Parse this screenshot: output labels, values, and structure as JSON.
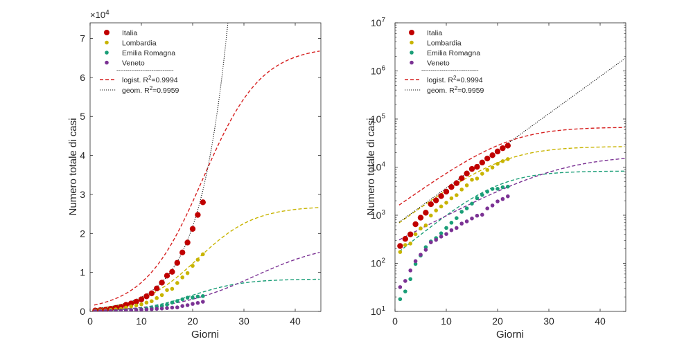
{
  "chart_data": [
    {
      "type": "scatter",
      "scale": "linear",
      "xlabel": "Giorni",
      "ylabel": "Numero totale di casi",
      "xlim": [
        0,
        45
      ],
      "ylim": [
        0,
        74000
      ],
      "exponent_label": "×10",
      "exponent_value": "4",
      "x_ticks": [
        {
          "v": 0,
          "label": "0"
        },
        {
          "v": 10,
          "label": "10"
        },
        {
          "v": 20,
          "label": "20"
        },
        {
          "v": 30,
          "label": "30"
        },
        {
          "v": 40,
          "label": "40"
        }
      ],
      "y_ticks": [
        {
          "v": 0,
          "label": "0"
        },
        {
          "v": 10000,
          "label": "1"
        },
        {
          "v": 20000,
          "label": "2"
        },
        {
          "v": 30000,
          "label": "3"
        },
        {
          "v": 40000,
          "label": "4"
        },
        {
          "v": 50000,
          "label": "5"
        },
        {
          "v": 60000,
          "label": "6"
        },
        {
          "v": 70000,
          "label": "7"
        }
      ],
      "legend": {
        "position": "top-left",
        "entries": [
          "Italia",
          "Lombardia",
          "Emilia Romagna",
          "Veneto"
        ],
        "separator": "-------------------------------",
        "fit_entries": [
          {
            "label": "logist.",
            "r2_prefix": "R",
            "r2_sup": "2",
            "r2_value": "=0.9994"
          },
          {
            "label": "geom.",
            "r2_prefix": "R",
            "r2_sup": "2",
            "r2_value": "=0.9959"
          }
        ]
      },
      "series": [
        {
          "name": "Italia",
          "color": "#c00000",
          "x": [
            1,
            2,
            3,
            4,
            5,
            6,
            7,
            8,
            9,
            10,
            11,
            12,
            13,
            14,
            15,
            16,
            17,
            18,
            19,
            20,
            21,
            22
          ],
          "values": [
            229,
            322,
            400,
            650,
            888,
            1128,
            1694,
            2036,
            2502,
            3089,
            3858,
            4636,
            5883,
            7375,
            9172,
            10149,
            12462,
            15113,
            17660,
            21157,
            24747,
            27980
          ]
        },
        {
          "name": "Lombardia",
          "color": "#c8b400",
          "x": [
            1,
            2,
            3,
            4,
            5,
            6,
            7,
            8,
            9,
            10,
            11,
            12,
            13,
            14,
            15,
            16,
            17,
            18,
            19,
            20,
            21,
            22
          ],
          "values": [
            172,
            240,
            258,
            403,
            531,
            615,
            984,
            1254,
            1520,
            1820,
            2251,
            2612,
            3420,
            4189,
            5469,
            5791,
            7280,
            8725,
            9820,
            11685,
            13272,
            14649
          ]
        },
        {
          "name": "Emilia Romagna",
          "color": "#1a9e77",
          "x": [
            1,
            2,
            3,
            4,
            5,
            6,
            7,
            8,
            9,
            10,
            11,
            12,
            13,
            14,
            15,
            16,
            17,
            18,
            19,
            20,
            21,
            22
          ],
          "values": [
            18,
            26,
            47,
            97,
            145,
            217,
            285,
            335,
            420,
            544,
            698,
            870,
            1180,
            1386,
            1739,
            2263,
            2644,
            3093,
            3522,
            3542,
            3819,
            3931
          ]
        },
        {
          "name": "Veneto",
          "color": "#7b3294",
          "x": [
            1,
            2,
            3,
            4,
            5,
            6,
            7,
            8,
            9,
            10,
            11,
            12,
            13,
            14,
            15,
            16,
            17,
            18,
            19,
            20,
            21,
            22
          ],
          "values": [
            32,
            43,
            71,
            111,
            151,
            191,
            273,
            307,
            360,
            407,
            488,
            543,
            670,
            744,
            856,
            977,
            1023,
            1384,
            1595,
            1937,
            2172,
            2473
          ]
        }
      ],
      "fits": [
        {
          "type": "logistic",
          "series": "Italia",
          "color": "#d62020",
          "K": 68000,
          "t0": 22,
          "r": 0.175
        },
        {
          "type": "logistic",
          "series": "Lombardia",
          "color": "#c8b400",
          "K": 27000,
          "t0": 21,
          "r": 0.18
        },
        {
          "type": "logistic",
          "series": "Emilia Romagna",
          "color": "#1a9e77",
          "K": 8300,
          "t0": 20,
          "r": 0.2
        },
        {
          "type": "logistic",
          "series": "Veneto",
          "color": "#7b3294",
          "K": 18000,
          "t0": 32,
          "r": 0.13
        },
        {
          "type": "geometric",
          "series": "Italia",
          "color": "#111111",
          "a": 620,
          "b": 0.178
        }
      ]
    },
    {
      "type": "scatter",
      "scale": "log",
      "xlabel": "Giorni",
      "ylabel": "Numero totale di casi",
      "xlim": [
        0,
        45
      ],
      "ylim": [
        10,
        10000000
      ],
      "x_ticks": [
        {
          "v": 0,
          "label": "0"
        },
        {
          "v": 10,
          "label": "10"
        },
        {
          "v": 20,
          "label": "20"
        },
        {
          "v": 30,
          "label": "30"
        },
        {
          "v": 40,
          "label": "40"
        }
      ],
      "y_ticks": [
        {
          "v": 10,
          "base": "10",
          "exp": "1"
        },
        {
          "v": 100,
          "base": "10",
          "exp": "2"
        },
        {
          "v": 1000,
          "base": "10",
          "exp": "3"
        },
        {
          "v": 10000,
          "base": "10",
          "exp": "4"
        },
        {
          "v": 100000,
          "base": "10",
          "exp": "5"
        },
        {
          "v": 1000000,
          "base": "10",
          "exp": "6"
        },
        {
          "v": 10000000,
          "base": "10",
          "exp": "7"
        }
      ],
      "legend": {
        "position": "top-left",
        "entries": [
          "Italia",
          "Lombardia",
          "Emilia Romagna",
          "Veneto"
        ],
        "separator": "-------------------------------",
        "fit_entries": [
          {
            "label": "logist.",
            "r2_prefix": "R",
            "r2_sup": "2",
            "r2_value": "=0.9994"
          },
          {
            "label": "geom.",
            "r2_prefix": "R",
            "r2_sup": "2",
            "r2_value": "=0.9959"
          }
        ]
      },
      "series_ref": "same data as first chart",
      "fits_ref": "same fits as first chart"
    }
  ]
}
